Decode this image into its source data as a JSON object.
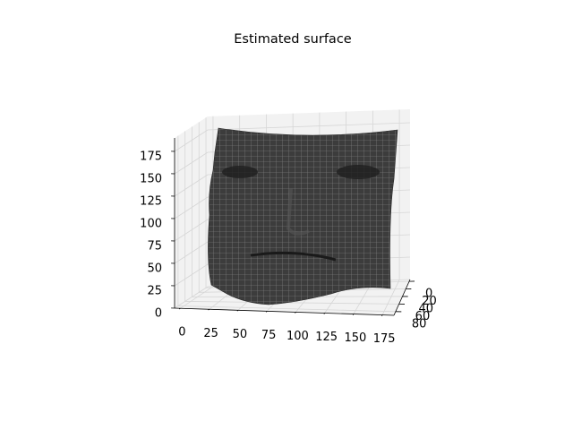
{
  "chart_data": {
    "type": "surface3d",
    "title": "Estimated surface",
    "xlim": [
      -5,
      185
    ],
    "xticks": [
      0,
      25,
      50,
      75,
      100,
      125,
      150,
      175
    ],
    "ylim": [
      -5,
      90
    ],
    "yticks": [
      0,
      20,
      40,
      60,
      80
    ],
    "zlim": [
      0,
      190
    ],
    "zticks": [
      0,
      25,
      50,
      75,
      100,
      125,
      150,
      175
    ],
    "grid": true,
    "color": "#3c3c3c"
  }
}
